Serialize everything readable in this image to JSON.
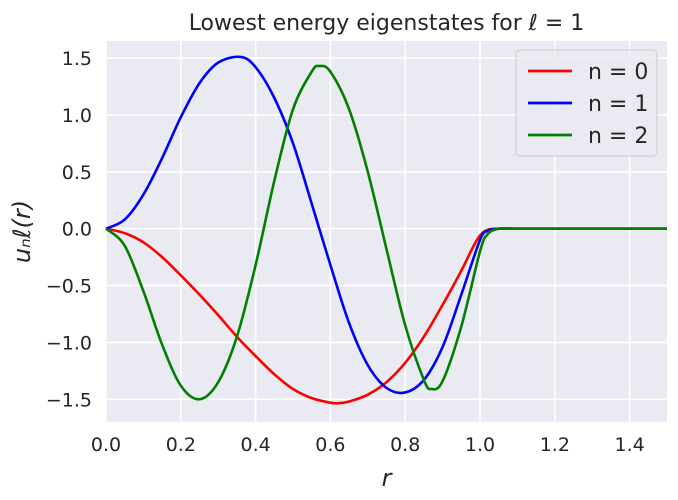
{
  "chart_data": {
    "type": "line",
    "title": "Lowest energy eigenstates for ℓ = 1",
    "xlabel": "r",
    "ylabel": "uₙℓ(r)",
    "xlim": [
      0.0,
      1.5
    ],
    "ylim": [
      -1.7,
      1.65
    ],
    "xticks": [
      "0.0",
      "0.2",
      "0.4",
      "0.6",
      "0.8",
      "1.0",
      "1.2",
      "1.4"
    ],
    "yticks": [
      "-1.5",
      "-1.0",
      "-0.5",
      "0.0",
      "0.5",
      "1.0",
      "1.5"
    ],
    "grid": true,
    "legend_position": "top-right",
    "series": [
      {
        "name": "n = 0",
        "color": "#ff0000",
        "x": [
          0.0,
          0.05,
          0.1,
          0.15,
          0.2,
          0.25,
          0.3,
          0.35,
          0.4,
          0.45,
          0.5,
          0.55,
          0.6,
          0.62,
          0.65,
          0.7,
          0.75,
          0.8,
          0.85,
          0.9,
          0.95,
          0.98,
          1.0,
          1.02,
          1.05,
          1.1,
          1.2,
          1.3,
          1.4,
          1.5
        ],
        "y": [
          0.0,
          -0.04,
          -0.12,
          -0.25,
          -0.41,
          -0.58,
          -0.76,
          -0.95,
          -1.12,
          -1.28,
          -1.41,
          -1.49,
          -1.53,
          -1.535,
          -1.52,
          -1.46,
          -1.35,
          -1.18,
          -0.95,
          -0.67,
          -0.37,
          -0.17,
          -0.06,
          -0.01,
          0.0,
          0.0,
          0.0,
          0.0,
          0.0,
          0.0
        ]
      },
      {
        "name": "n = 1",
        "color": "#0000ff",
        "x": [
          0.0,
          0.05,
          0.1,
          0.15,
          0.2,
          0.25,
          0.3,
          0.36,
          0.4,
          0.45,
          0.5,
          0.55,
          0.6,
          0.65,
          0.7,
          0.75,
          0.8,
          0.85,
          0.9,
          0.95,
          1.0,
          1.02,
          1.05,
          1.1,
          1.2,
          1.3,
          1.4,
          1.5
        ],
        "y": [
          0.0,
          0.08,
          0.3,
          0.62,
          0.98,
          1.28,
          1.46,
          1.51,
          1.42,
          1.15,
          0.75,
          0.22,
          -0.32,
          -0.83,
          -1.2,
          -1.4,
          -1.44,
          -1.33,
          -1.04,
          -0.58,
          -0.1,
          -0.02,
          0.0,
          0.0,
          0.0,
          0.0,
          0.0,
          0.0
        ]
      },
      {
        "name": "n = 2",
        "color": "#008000",
        "x": [
          0.0,
          0.05,
          0.1,
          0.15,
          0.2,
          0.25,
          0.3,
          0.35,
          0.4,
          0.45,
          0.5,
          0.55,
          0.57,
          0.6,
          0.65,
          0.7,
          0.75,
          0.8,
          0.85,
          0.87,
          0.9,
          0.95,
          1.0,
          1.02,
          1.05,
          1.1,
          1.2,
          1.3,
          1.4,
          1.5
        ],
        "y": [
          0.0,
          -0.15,
          -0.55,
          -1.02,
          -1.38,
          -1.5,
          -1.35,
          -0.95,
          -0.32,
          0.42,
          1.05,
          1.38,
          1.43,
          1.38,
          1.05,
          0.5,
          -0.18,
          -0.85,
          -1.33,
          -1.41,
          -1.34,
          -0.86,
          -0.2,
          -0.05,
          0.0,
          0.0,
          0.0,
          0.0,
          0.0,
          0.0
        ]
      }
    ]
  }
}
